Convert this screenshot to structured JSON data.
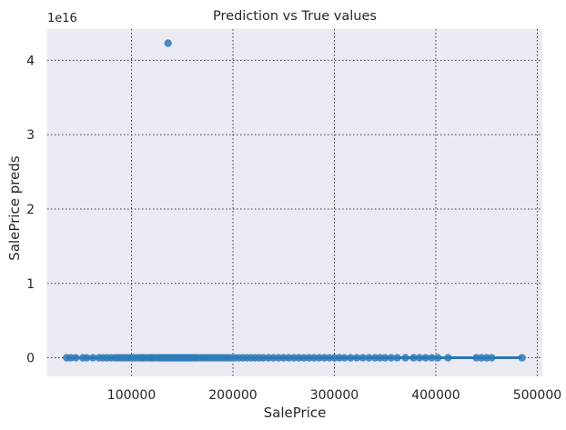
{
  "chart_data": {
    "type": "scatter",
    "title": "Prediction vs True values",
    "xlabel": "SalePrice",
    "ylabel": "SalePrice preds",
    "y_offset_text": "1e16",
    "xlim": [
      17000,
      505000
    ],
    "ylim": [
      -0.25,
      4.42
    ],
    "y_units_multiplier": 1e+16,
    "xticks": [
      100000,
      200000,
      300000,
      400000,
      500000
    ],
    "xtick_labels": [
      "100000",
      "200000",
      "300000",
      "400000",
      "500000"
    ],
    "yticks": [
      0,
      1,
      2,
      3,
      4
    ],
    "ytick_labels": [
      "0",
      "1",
      "2",
      "3",
      "4"
    ],
    "grid": true,
    "colors": {
      "background": "#eaeaf2",
      "point": "#2e7ab8",
      "regression": "#2a74b5",
      "grid": "#3a3a3a"
    },
    "outlier": {
      "x": 136000,
      "y": 4.23
    },
    "points_x": [
      36000,
      40000,
      45000,
      52000,
      56000,
      62000,
      68000,
      72000,
      76000,
      80000,
      84000,
      87000,
      90000,
      93000,
      96000,
      99000,
      102000,
      105000,
      108000,
      110000,
      112000,
      115000,
      118000,
      120000,
      122000,
      125000,
      127000,
      129000,
      131000,
      133000,
      135000,
      137000,
      139000,
      141000,
      143000,
      145000,
      147000,
      149000,
      151000,
      153000,
      155000,
      157000,
      159000,
      161000,
      163000,
      165000,
      168000,
      171000,
      174000,
      177000,
      180000,
      183000,
      186000,
      189000,
      192000,
      195000,
      198000,
      202000,
      206000,
      210000,
      214000,
      218000,
      222000,
      226000,
      230000,
      235000,
      240000,
      245000,
      250000,
      255000,
      260000,
      265000,
      270000,
      275000,
      280000,
      285000,
      290000,
      295000,
      300000,
      305000,
      310000,
      316000,
      322000,
      328000,
      334000,
      340000,
      345000,
      350000,
      356000,
      362000,
      370000,
      378000,
      384000,
      390000,
      396000,
      402000,
      412000,
      440000,
      445000,
      450000,
      455000,
      485000
    ],
    "regression_line": {
      "x": [
        36000,
        485000
      ],
      "y": [
        0.0,
        0.0
      ]
    }
  }
}
